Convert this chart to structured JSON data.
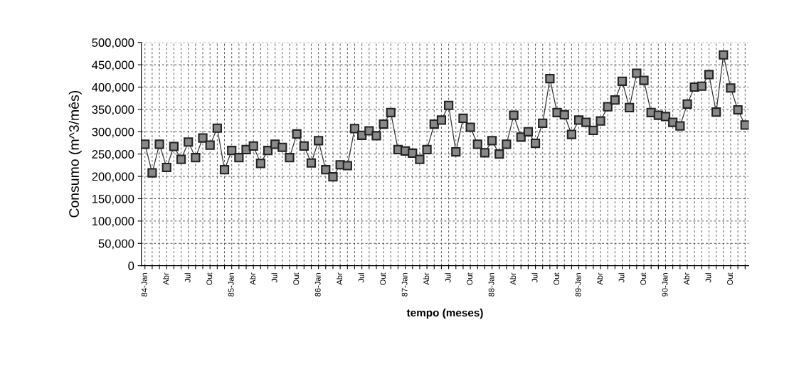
{
  "chart_data": {
    "type": "line",
    "xlabel": "tempo (meses)",
    "ylabel": "Consumo (m^3/mês)",
    "categories": [
      "84-Jan",
      null,
      null,
      "Abr",
      null,
      null,
      "Jul",
      null,
      null,
      "Out",
      null,
      null,
      "85-Jan",
      null,
      null,
      "Abr",
      null,
      null,
      "Jul",
      null,
      null,
      "Out",
      null,
      null,
      "86-Jan",
      null,
      null,
      "Abr",
      null,
      null,
      "Jul",
      null,
      null,
      "Out",
      null,
      null,
      "87-Jan",
      null,
      null,
      "Abr",
      null,
      null,
      "Jul",
      null,
      null,
      "Out",
      null,
      null,
      "88-Jan",
      null,
      null,
      "Abr",
      null,
      null,
      "Jul",
      null,
      null,
      "Out",
      null,
      null,
      "89-Jan",
      null,
      null,
      "Abr",
      null,
      null,
      "Jul",
      null,
      null,
      "Out",
      null,
      null,
      "90-Jan",
      null,
      null,
      "Abr",
      null,
      null,
      "Jul",
      null,
      null,
      "Out",
      null,
      null
    ],
    "series": [
      {
        "color": "#333333",
        "values": [
          272000,
          208000,
          272000,
          220000,
          267000,
          238000,
          277000,
          242000,
          286000,
          270000,
          308000,
          215000,
          258000,
          242000,
          260000,
          268000,
          229000,
          258000,
          272000,
          265000,
          242000,
          295000,
          268000,
          230000,
          280000,
          215000,
          199000,
          226000,
          224000,
          307000,
          292000,
          302000,
          291000,
          317000,
          343000,
          260000,
          257000,
          252000,
          238000,
          260000,
          317000,
          326000,
          359000,
          255000,
          330000,
          310000,
          272000,
          253000,
          280000,
          250000,
          272000,
          337000,
          288000,
          300000,
          274000,
          319000,
          419000,
          343000,
          338000,
          294000,
          326000,
          321000,
          303000,
          324000,
          356000,
          371000,
          413000,
          354000,
          431000,
          415000,
          343000,
          337000,
          334000,
          321000,
          313000,
          362000,
          400000,
          402000,
          428000,
          344000,
          472000,
          398000,
          349000,
          315000
        ]
      }
    ],
    "ylim": [
      0,
      500000
    ],
    "yticks": [
      {
        "value": 0,
        "label": "0"
      },
      {
        "value": 50000,
        "label": "50,000"
      },
      {
        "value": 100000,
        "label": "100,000"
      },
      {
        "value": 150000,
        "label": "150,000"
      },
      {
        "value": 200000,
        "label": "200,000"
      },
      {
        "value": 250000,
        "label": "250,000"
      },
      {
        "value": 300000,
        "label": "300,000"
      },
      {
        "value": 350000,
        "label": "350,000"
      },
      {
        "value": 400000,
        "label": "400,000"
      },
      {
        "value": 450000,
        "label": "450,000"
      },
      {
        "value": 500000,
        "label": "500,000"
      }
    ],
    "grid": true,
    "marker": "square",
    "line_style": "solid",
    "legend": false
  }
}
